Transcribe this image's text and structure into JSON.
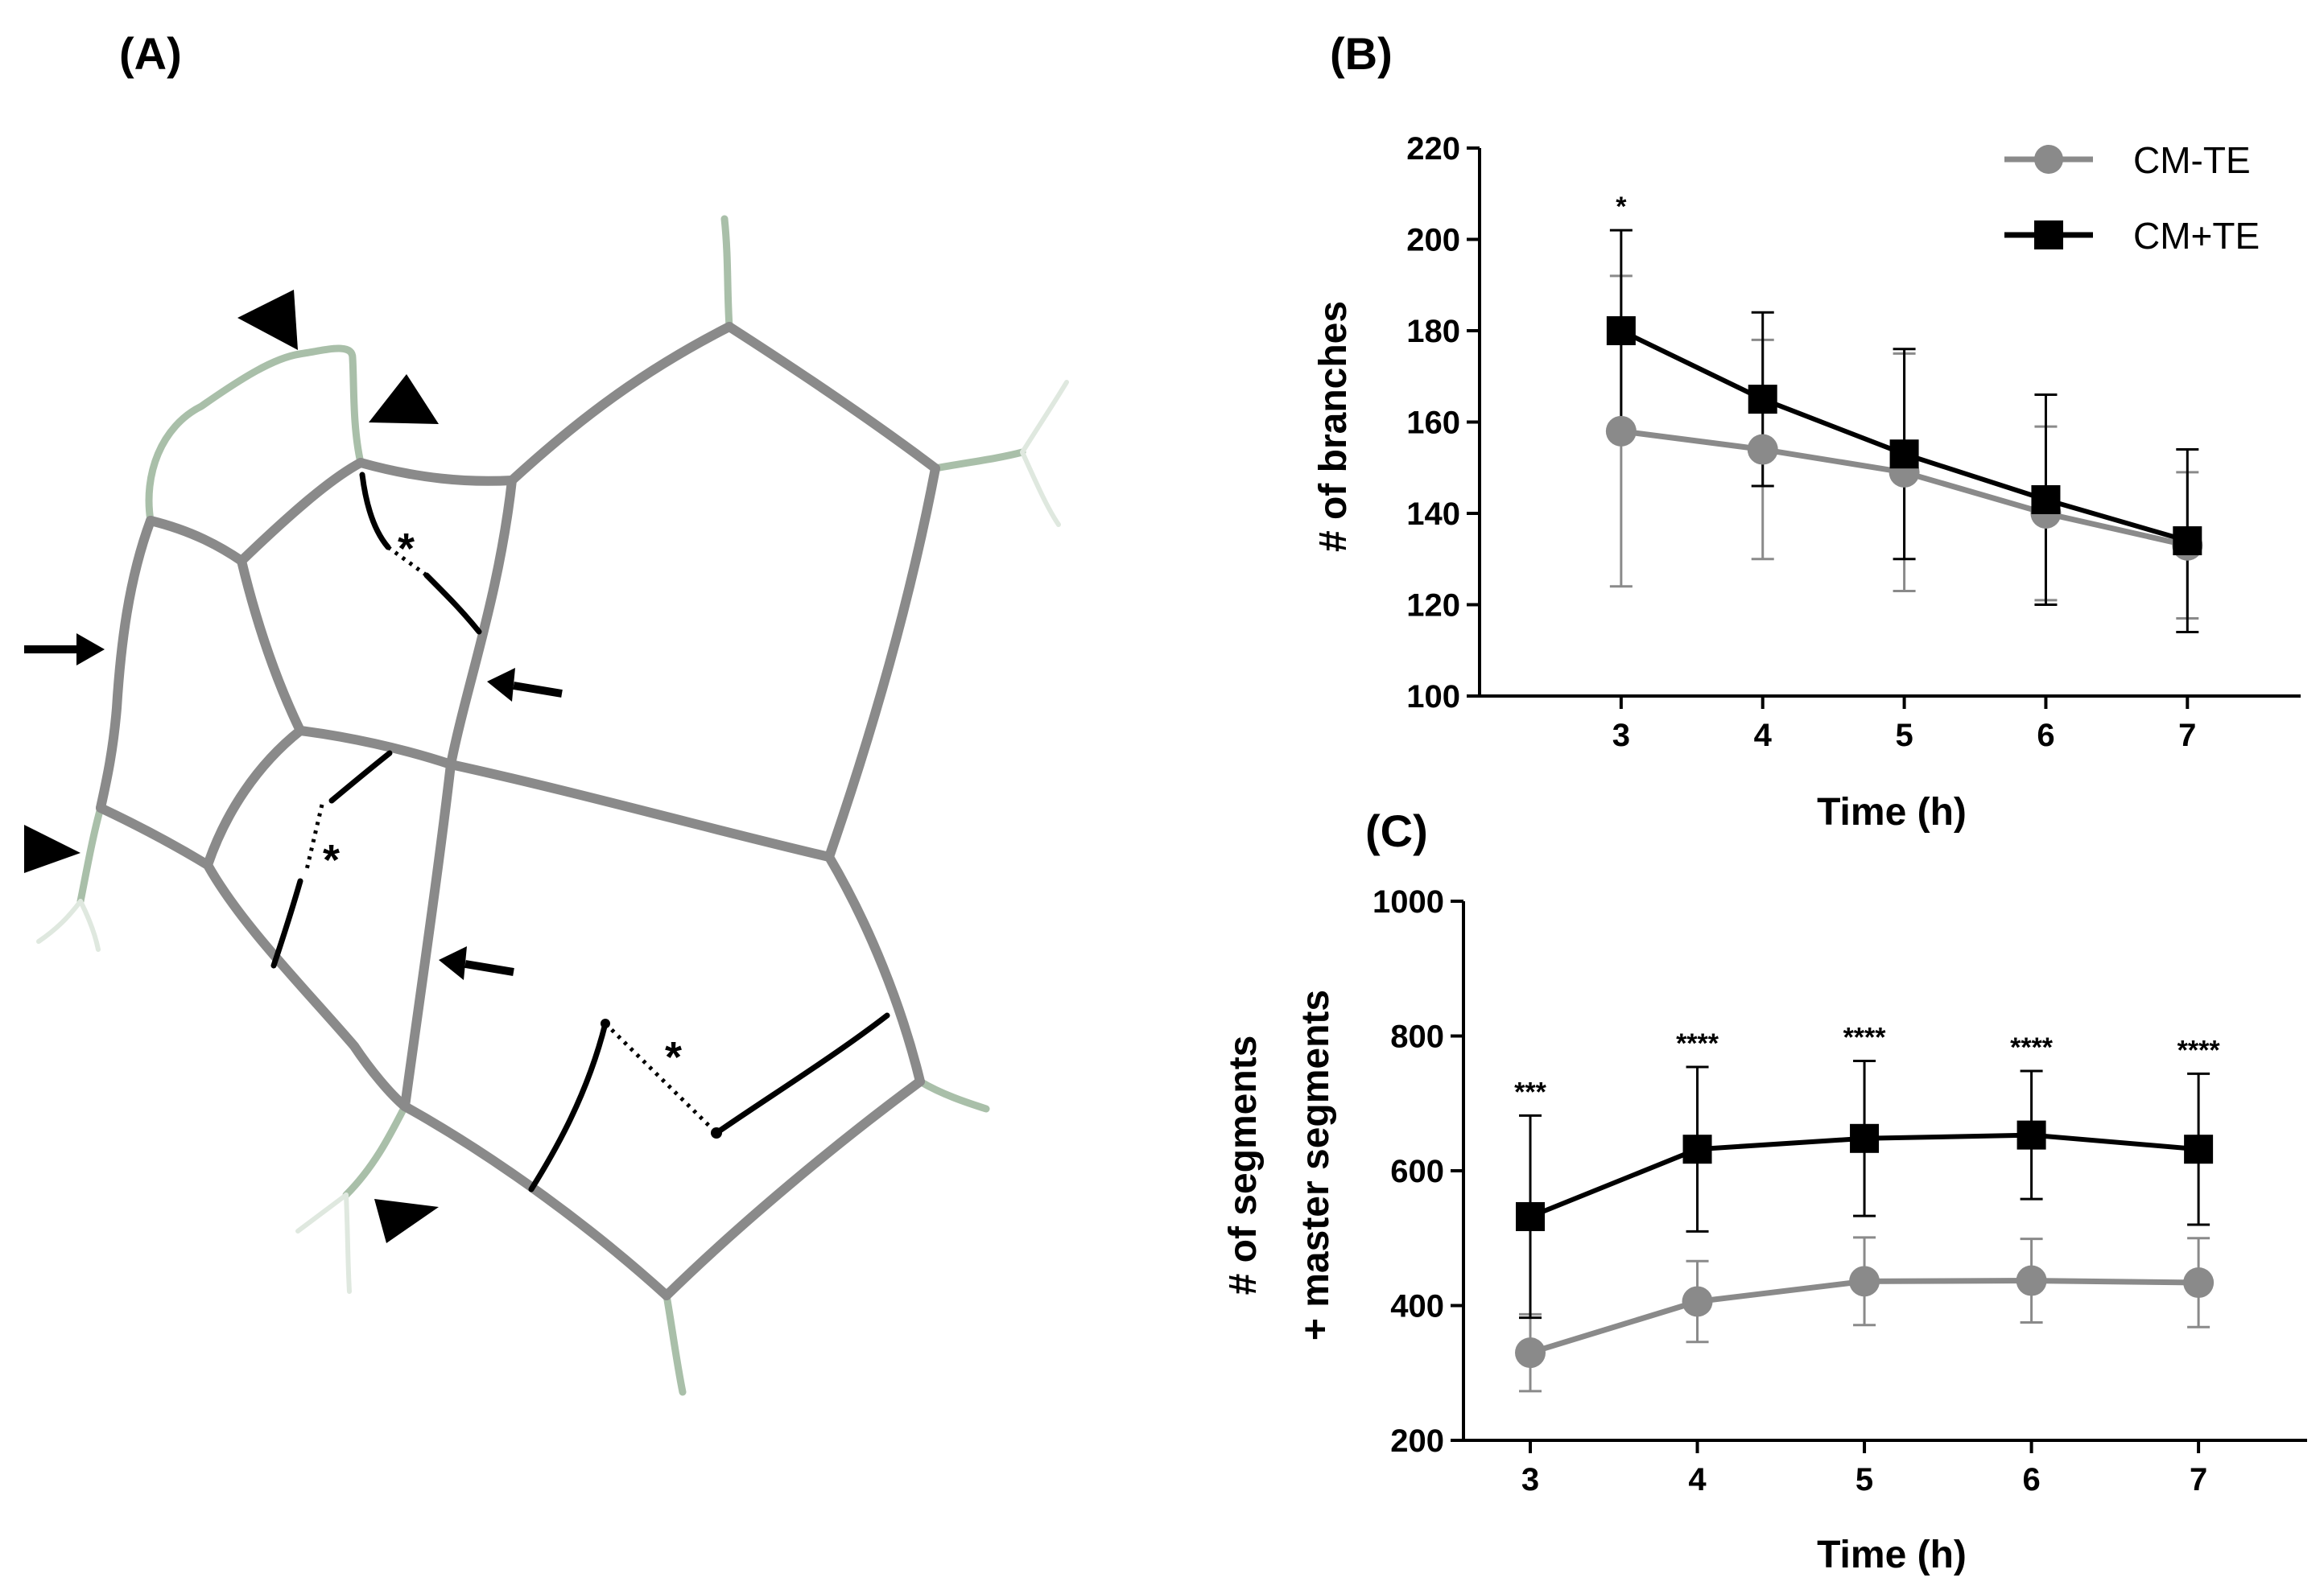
{
  "panels": {
    "a": "(A)",
    "b": "(B)",
    "c": "(C)"
  },
  "diagram": {
    "asterisk": "*"
  },
  "colors": {
    "gray": "#8a8a8a",
    "black": "#000000",
    "sprout": "#a9bfa9"
  },
  "chart_data": [
    {
      "id": "B",
      "type": "line",
      "ylabel": "# of branches",
      "xlabel": "Time (h)",
      "x": [
        3,
        4,
        5,
        6,
        7
      ],
      "ylim": [
        100,
        220
      ],
      "yticks": [
        100,
        120,
        140,
        160,
        180,
        200,
        220
      ],
      "series": [
        {
          "name": "CM-TE",
          "marker": "circle",
          "color": "#8a8a8a",
          "values": [
            158,
            154,
            149,
            140,
            133
          ],
          "err": [
            34,
            24,
            26,
            19,
            16
          ]
        },
        {
          "name": "CM+TE",
          "marker": "square",
          "color": "#000000",
          "values": [
            180,
            165,
            153,
            143,
            134
          ],
          "err": [
            22,
            19,
            23,
            23,
            20
          ]
        }
      ],
      "significance": [
        {
          "x": 3,
          "label": "*"
        }
      ],
      "legend": "top-right"
    },
    {
      "id": "C",
      "type": "line",
      "ylabel": [
        "# of segments",
        "+ master segments"
      ],
      "xlabel": "Time (h)",
      "x": [
        3,
        4,
        5,
        6,
        7
      ],
      "ylim": [
        200,
        1000
      ],
      "yticks": [
        200,
        400,
        600,
        800,
        1000
      ],
      "series": [
        {
          "name": "CM-TE",
          "marker": "circle",
          "color": "#8a8a8a",
          "values": [
            330,
            406,
            436,
            437,
            434
          ],
          "err": [
            57,
            60,
            65,
            62,
            66
          ]
        },
        {
          "name": "CM+TE",
          "marker": "square",
          "color": "#000000",
          "values": [
            532,
            632,
            648,
            653,
            632
          ],
          "err": [
            150,
            122,
            115,
            95,
            112
          ]
        }
      ],
      "significance": [
        {
          "x": 3,
          "label": "***"
        },
        {
          "x": 4,
          "label": "****"
        },
        {
          "x": 5,
          "label": "****"
        },
        {
          "x": 6,
          "label": "****"
        },
        {
          "x": 7,
          "label": "****"
        }
      ]
    }
  ]
}
